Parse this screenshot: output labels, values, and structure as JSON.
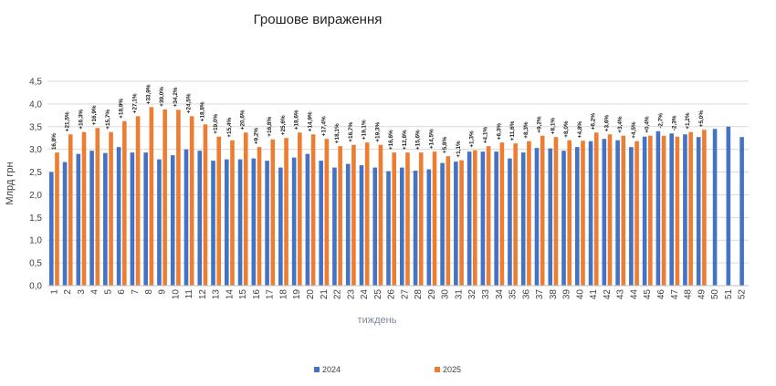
{
  "chart_data": {
    "type": "bar",
    "title": "Грошове вираження",
    "xlabel": "тиждень",
    "ylabel": "Млрд грн",
    "ylim": [
      0,
      4.5
    ],
    "ytick_step": 0.5,
    "ytick_labels": [
      "0,0",
      "0,5",
      "1,0",
      "1,5",
      "2,0",
      "2,5",
      "3,0",
      "3,5",
      "4,0",
      "4,5"
    ],
    "grid": true,
    "legend_position": "bottom-center",
    "categories": [
      "1",
      "2",
      "3",
      "4",
      "5",
      "6",
      "7",
      "8",
      "9",
      "10",
      "11",
      "12",
      "13",
      "14",
      "15",
      "16",
      "17",
      "18",
      "19",
      "20",
      "21",
      "22",
      "23",
      "24",
      "25",
      "26",
      "27",
      "28",
      "29",
      "30",
      "31",
      "32",
      "33",
      "34",
      "35",
      "36",
      "37",
      "38",
      "39",
      "40",
      "41",
      "42",
      "43",
      "44",
      "45",
      "46",
      "47",
      "48",
      "49",
      "50",
      "51",
      "52"
    ],
    "series": [
      {
        "name": "2024",
        "color": "#4472c4",
        "values": [
          2.5,
          2.72,
          2.9,
          2.97,
          2.92,
          3.05,
          2.93,
          2.93,
          2.78,
          2.87,
          3.0,
          2.97,
          2.75,
          2.78,
          2.78,
          2.8,
          2.75,
          2.6,
          2.82,
          2.9,
          2.75,
          2.6,
          2.68,
          2.65,
          2.6,
          2.52,
          2.6,
          2.53,
          2.56,
          2.7,
          2.73,
          2.95,
          2.95,
          2.95,
          2.8,
          2.93,
          3.03,
          3.02,
          2.97,
          3.05,
          3.18,
          3.23,
          3.2,
          3.05,
          3.28,
          3.4,
          3.35,
          3.33,
          3.27,
          3.45,
          3.5,
          3.27
        ]
      },
      {
        "name": "2025",
        "color": "#ed7d31",
        "values": [
          2.93,
          3.33,
          3.38,
          3.47,
          3.38,
          3.62,
          3.73,
          3.93,
          3.88,
          3.87,
          3.73,
          3.55,
          3.28,
          3.2,
          3.37,
          3.05,
          3.22,
          3.25,
          3.37,
          3.33,
          3.23,
          3.07,
          3.1,
          3.15,
          3.1,
          2.93,
          2.93,
          2.93,
          2.95,
          2.85,
          2.76,
          2.98,
          3.07,
          3.15,
          3.13,
          3.18,
          3.3,
          3.27,
          3.2,
          3.19,
          3.37,
          3.33,
          3.3,
          3.18,
          3.3,
          3.3,
          3.28,
          3.38,
          3.43,
          null,
          null,
          null
        ]
      }
    ],
    "data_labels": [
      "16,8%",
      "+21,5%",
      "+16,3%",
      "+16,9%",
      "+15,7%",
      "+18,9%",
      "+27,1%",
      "+33,9%",
      "+39,0%",
      "+34,2%",
      "+24,5%",
      "+18,8%",
      "+19,0%",
      "+15,4%",
      "+20,6%",
      "+9,2%",
      "+16,8%",
      "+25,6%",
      "+18,6%",
      "+14,9%",
      "+17,4%",
      "+18,1%",
      "+16,7%",
      "+19,1%",
      "+19,3%",
      "+16,6%",
      "+12,8%",
      "+15,6%",
      "+14,5%",
      "+5,8%",
      "+1,1%",
      "+1,3%",
      "+4,1%",
      "+6,3%",
      "+11,6%",
      "+8,3%",
      "+9,2%",
      "+8,1%",
      "+8,0%",
      "+4,8%",
      "+6,2%",
      "+3,6%",
      "+3,4%",
      "+4,5%",
      "+0,4%",
      "-2,7%",
      "-2,3%",
      "+1,2%",
      "+5,0%",
      null,
      null,
      null
    ]
  }
}
